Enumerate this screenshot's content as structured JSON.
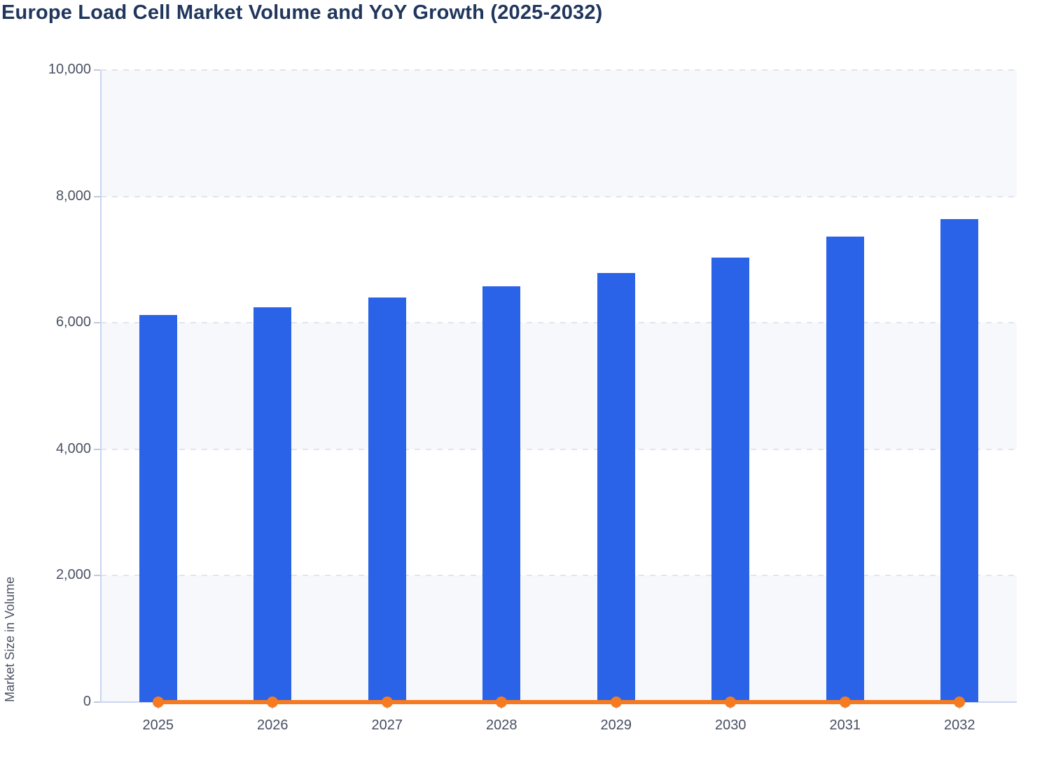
{
  "header": {
    "title": "Europe Load Cell Market Volume and YoY Growth (2025-2032)"
  },
  "colors": {
    "bar": "#2a63e8",
    "line": "#f67b20",
    "title_text": "#20365c",
    "axis_text": "#4a5162",
    "gridline": "#e2e4ed",
    "axis_line": "#c9d4f1",
    "band_shade": "#f7f8fb",
    "background": "#ffffff"
  },
  "chart_data": {
    "type": "bar",
    "title": "Europe Load Cell Market Volume and YoY Growth (2025-2032)",
    "categories": [
      "2025",
      "2026",
      "2027",
      "2028",
      "2029",
      "2030",
      "2031",
      "2032"
    ],
    "series": [
      {
        "name": "Market Size in Volume",
        "type": "bar",
        "color": "#2a63e8",
        "values": [
          6120,
          6245,
          6400,
          6580,
          6790,
          7030,
          7365,
          7640
        ]
      },
      {
        "name": "YoY Growth",
        "type": "line",
        "color": "#f67b20",
        "values": [
          0,
          0,
          0,
          0,
          0,
          0,
          0,
          0
        ],
        "rendered_position": "flat line with markers at y=0 of the volume axis"
      }
    ],
    "xlabel": "",
    "ylabel": "Market Size in Volume",
    "ylim": [
      0,
      10000
    ],
    "ytick_interval": 2000,
    "ytick_labels": [
      "0",
      "2,000",
      "4,000",
      "6,000",
      "8,000",
      "10,000"
    ],
    "grid": "horizontal dashed gridlines every 2,000",
    "plot_bands": "alternating shaded/white horizontal bands every 2,000, shaded starting from 0-2,000",
    "legend": "none"
  }
}
